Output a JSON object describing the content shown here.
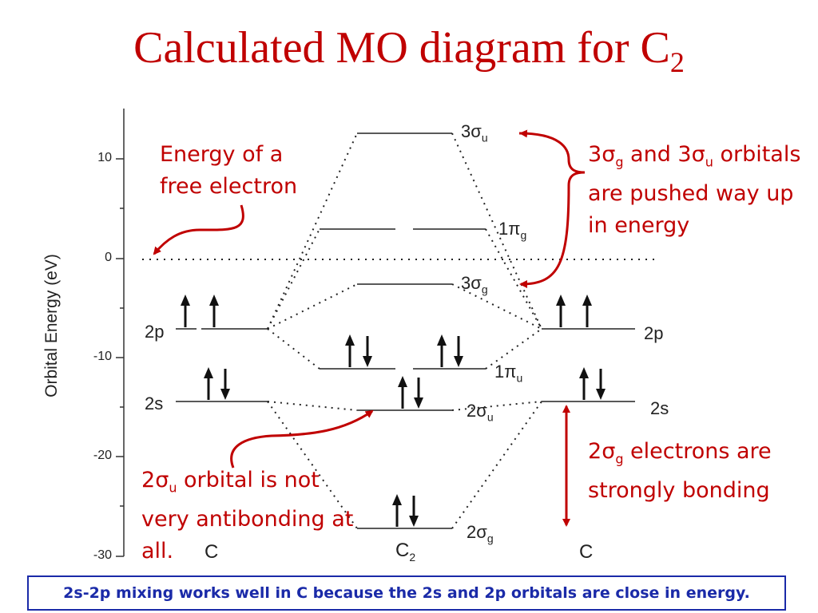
{
  "title": {
    "text": "Calculated MO diagram for C",
    "sub": "2"
  },
  "axis": {
    "label": "Orbital Energy (eV)",
    "ticks": [
      "10",
      "0",
      "-10",
      "-20",
      "-30"
    ]
  },
  "atom_labels": {
    "left": "C",
    "right": "C",
    "middle": "C",
    "middle_sub": "2"
  },
  "ao_labels": {
    "p2_left": "2p",
    "s2_left": "2s",
    "p2_right": "2p",
    "s2_right": "2s"
  },
  "mo_labels": {
    "s3u": {
      "n": "3",
      "sym": "σ",
      "sub": "u"
    },
    "p1g": {
      "n": "1",
      "sym": "π",
      "sub": "g"
    },
    "s3g": {
      "n": "3",
      "sym": "σ",
      "sub": "g"
    },
    "p1u": {
      "n": "1",
      "sym": "π",
      "sub": "u"
    },
    "s2u": {
      "n": "2",
      "sym": "σ",
      "sub": "u"
    },
    "s2g": {
      "n": "2",
      "sym": "σ",
      "sub": "g"
    }
  },
  "annotations": {
    "free_electron": {
      "line1": "Energy of a",
      "line2": "free electron"
    },
    "pushed_up": {
      "a": "3",
      "b": "σ",
      "c": "g",
      "d": " and 3",
      "e": "σ",
      "f": "u",
      "g": " orbitals",
      "line2": "are pushed way up",
      "line3": "in energy"
    },
    "s2u_note": {
      "a": "2",
      "b": "σ",
      "c": "u",
      "d": " orbital is not",
      "line2": "very antibonding at",
      "line3": "all."
    },
    "s2g_note": {
      "a": "2",
      "b": "σ",
      "c": "g",
      "d": " electrons are",
      "line2": "strongly bonding"
    }
  },
  "footer": "2s-2p mixing works well in C because the 2s and 2p orbitals are close in energy.",
  "colors": {
    "accent": "#c00000",
    "footer": "#1a2aa8"
  }
}
